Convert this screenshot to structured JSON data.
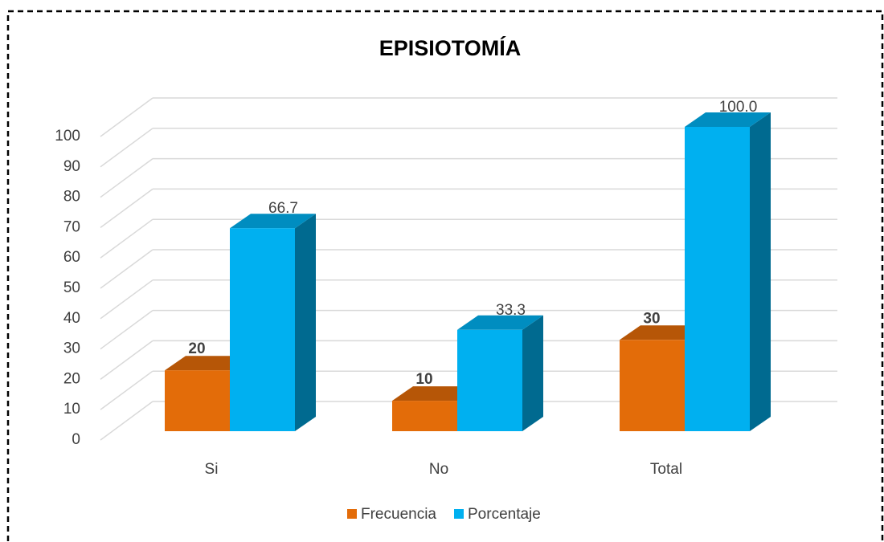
{
  "chart_data": {
    "type": "bar3d",
    "title": "EPISIOTOMÍA",
    "categories": [
      "Si",
      "No",
      "Total"
    ],
    "series": [
      {
        "name": "Frecuencia",
        "color": "#e36c09",
        "values": [
          20,
          10,
          30
        ]
      },
      {
        "name": "Porcentaje",
        "color": "#00b0f0",
        "values": [
          66.7,
          33.3,
          100
        ],
        "value_labels": [
          "66.7",
          "33.3",
          "100.0"
        ]
      }
    ],
    "ylim": [
      0,
      100
    ],
    "yticks": [
      0,
      10,
      20,
      30,
      40,
      50,
      60,
      70,
      80,
      90,
      100
    ],
    "grid": true,
    "legend": "bottom"
  }
}
